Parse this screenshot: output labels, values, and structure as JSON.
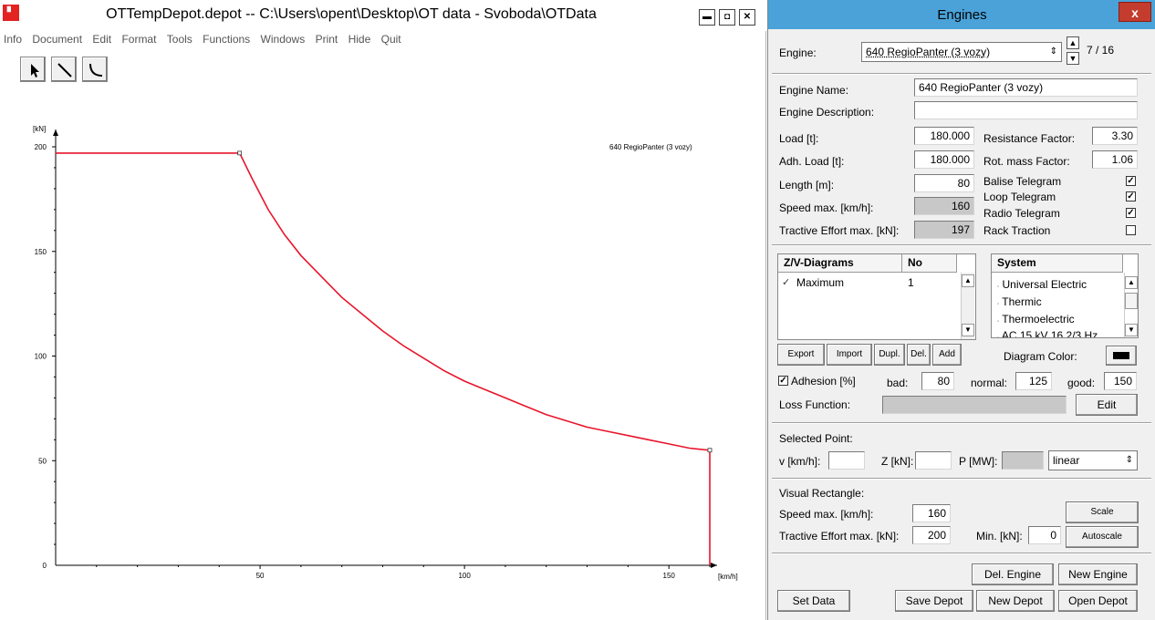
{
  "main_window": {
    "title": "OTTempDepot.depot  --  C:\\Users\\opent\\Desktop\\OT data - Svoboda\\OTData",
    "menu": [
      "Info",
      "Document",
      "Edit",
      "Format",
      "Tools",
      "Functions",
      "Windows",
      "Print",
      "Hide",
      "Quit"
    ],
    "window_buttons": {
      "minimize": "▬",
      "maximize": "◘",
      "close": "✕"
    }
  },
  "chart_data": {
    "type": "line",
    "ylabel": "[kN]",
    "xlabel": "[km/h]",
    "xlim": [
      0,
      160
    ],
    "ylim": [
      0,
      200
    ],
    "x_ticks": [
      50,
      100,
      150
    ],
    "y_ticks": [
      0,
      50,
      100,
      150,
      200
    ],
    "x_tick_labels": [
      "50",
      "100",
      "150"
    ],
    "y_tick_labels": [
      "0",
      "50",
      "100",
      "150",
      "200"
    ],
    "legend": "640 RegioPanter (3 vozy)",
    "color": "#e8152b",
    "series": [
      {
        "name": "640 RegioPanter (3 vozy)",
        "x": [
          0,
          45,
          48,
          52,
          56,
          60,
          65,
          70,
          75,
          80,
          85,
          90,
          95,
          100,
          105,
          110,
          115,
          120,
          125,
          130,
          135,
          140,
          145,
          150,
          155,
          160,
          160
        ],
        "y": [
          197,
          197,
          185,
          170,
          158,
          148,
          138,
          128,
          120,
          112,
          105,
          99,
          93,
          88,
          84,
          80,
          76,
          72,
          69,
          66,
          64,
          62,
          60,
          58,
          56,
          55,
          0
        ]
      }
    ]
  },
  "engines_window": {
    "title": "Engines",
    "close": "x",
    "engine_label": "Engine:",
    "engine_selected": "640 RegioPanter (3 vozy)",
    "engine_index": "7 / 16",
    "engine_name_label": "Engine Name:",
    "engine_name_value": "640 RegioPanter (3 vozy)",
    "engine_description_label": "Engine Description:",
    "engine_description_value": "",
    "load_label": "Load [t]:",
    "load_value": "180.000",
    "adh_load_label": "Adh. Load [t]:",
    "adh_load_value": "180.000",
    "length_label": "Length [m]:",
    "length_value": "80",
    "speed_max_label": "Speed max. [km/h]:",
    "speed_max_value": "160",
    "tractive_effort_label": "Tractive Effort max. [kN]:",
    "tractive_effort_value": "197",
    "resistance_factor_label": "Resistance Factor:",
    "resistance_factor_value": "3.30",
    "rot_mass_label": "Rot. mass Factor:",
    "rot_mass_value": "1.06",
    "telegrams": [
      {
        "label": "Balise Telegram",
        "mark": "✓"
      },
      {
        "label": "Loop Telegram",
        "mark": "✓"
      },
      {
        "label": "Radio Telegram",
        "mark": "✓"
      },
      {
        "label": "Rack Traction",
        "mark": ""
      }
    ],
    "zv_header": "Z/V-Diagrams",
    "no_header": "No",
    "zv_rows": [
      {
        "check": "✓",
        "name": "Maximum",
        "no": "1"
      }
    ],
    "system_header": "System",
    "systems": [
      "Universal Electric",
      "Thermic",
      "Thermoelectric",
      "AC 15 kV 16 2/3 Hz"
    ],
    "diagram_buttons": [
      "Export",
      "Import",
      "Dupl.",
      "Del.",
      "Add"
    ],
    "diagram_color_label": "Diagram Color:",
    "diagram_color": "#000000",
    "adhesion_label": "Adhesion [%]",
    "adhesion_mark": "✓",
    "bad_label": "bad:",
    "bad_value": "80",
    "normal_label": "normal:",
    "normal_value": "125",
    "good_label": "good:",
    "good_value": "150",
    "loss_function_label": "Loss Function:",
    "edit_button": "Edit",
    "selected_point_label": "Selected Point:",
    "v_label": "v [km/h]:",
    "z_label": "Z [kN]:",
    "p_label": "P [MW]:",
    "interp_selected": "linear",
    "visual_rect_label": "Visual Rectangle:",
    "vr_speed_label": "Speed max. [km/h]:",
    "vr_speed_value": "160",
    "vr_te_label": "Tractive Effort max. [kN]:",
    "vr_te_value": "200",
    "vr_min_label": "Min. [kN]:",
    "vr_min_value": "0",
    "scale_button": "Scale",
    "autoscale_button": "Autoscale",
    "del_engine_button": "Del. Engine",
    "new_engine_button": "New Engine",
    "set_data_button": "Set Data",
    "save_depot_button": "Save Depot",
    "new_depot_button": "New Depot",
    "open_depot_button": "Open Depot"
  }
}
